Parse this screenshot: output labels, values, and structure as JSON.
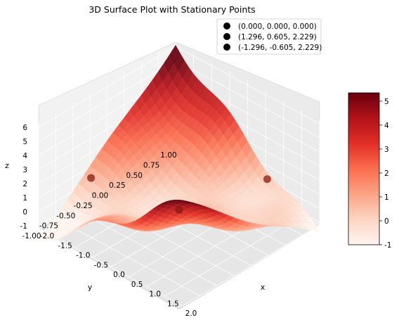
{
  "chart_data": {
    "type": "surface3d",
    "title": "3D Surface Plot with Stationary Points",
    "xlabel": "x",
    "ylabel": "y",
    "zlabel": "z",
    "x_ticks": [
      "-2.0",
      "-1.5",
      "-1.0",
      "-0.5",
      "0.0",
      "0.5",
      "1.0",
      "1.5",
      "2.0"
    ],
    "y_ticks": [
      "-1.00",
      "-0.75",
      "-0.50",
      "-0.25",
      "0.00",
      "0.25",
      "0.50",
      "0.75",
      "1.00"
    ],
    "z_ticks": [
      "-1",
      "0",
      "1",
      "2",
      "3",
      "4",
      "5",
      "6"
    ],
    "xlim": [
      -2,
      2
    ],
    "ylim": [
      -1,
      1
    ],
    "zlim": [
      -1.2,
      6.3
    ],
    "colormap": "Reds",
    "colorbar": {
      "ticks": [
        "-1",
        "0",
        "1",
        "2",
        "3",
        "4",
        "5"
      ],
      "range": [
        -1.0,
        5.35
      ],
      "colors": [
        "#fff5f0",
        "#fdd4c2",
        "#fca486",
        "#fb6d4d",
        "#e22e27",
        "#b11218",
        "#67000d"
      ]
    },
    "stationary_points": [
      {
        "label": "(0.000, 0.000, 0.000)",
        "x": 0.0,
        "y": 0.0,
        "z": 0.0
      },
      {
        "label": "(1.296, 0.605, 2.229)",
        "x": 1.296,
        "y": 0.605,
        "z": 2.229
      },
      {
        "label": "(-1.296, -0.605, 2.229)",
        "x": -1.296,
        "y": -0.605,
        "z": 2.229
      }
    ],
    "legend_position": "top-right",
    "grid": true
  }
}
